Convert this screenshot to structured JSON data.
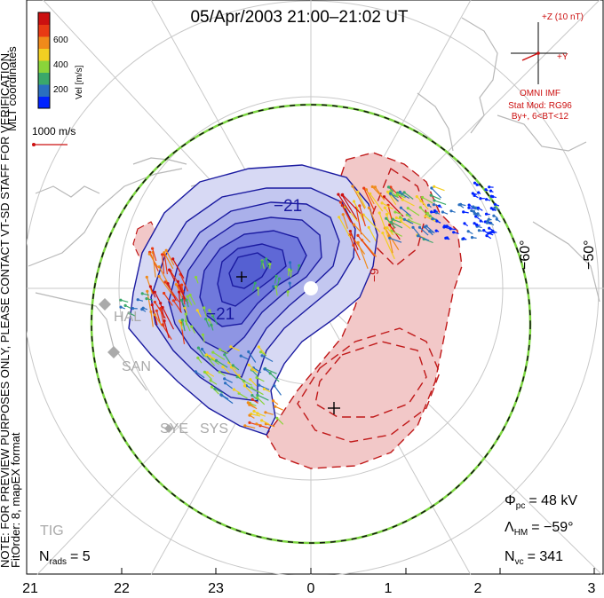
{
  "title": "05/Apr/2003 21:00–21:02 UT",
  "colorbar": {
    "ticks": [
      "600",
      "400",
      "200"
    ],
    "label": "Vel [m/s]",
    "colors": [
      "#0022ff",
      "#2a6fbf",
      "#3aa86a",
      "#8ad43a",
      "#f2cf22",
      "#f08a1a",
      "#e83a14",
      "#cc1010"
    ]
  },
  "coord_system": "MLT coordinates",
  "scale_vector": "1000 m/s",
  "preview_note": "NOTE: FOR PREVIEW PURPOSES ONLY, PLEASE CONTACT VT-SD STAFF FOR VERIFICATION.",
  "fit_order": "FitOrder: 8, mapEX format",
  "imf": {
    "z_label": "+Z (10 nT)",
    "y_label": "+Y",
    "source": "OMNI IMF",
    "stat_mod": "Stat Mod: RG96",
    "bin": "By+, 6<BT<12"
  },
  "latitude_labels": [
    "−60°",
    "−50°"
  ],
  "contour_labels": [
    "−21",
    "−21",
    "−9"
  ],
  "stations": [
    "HAL",
    "SAN",
    "SYE",
    "SYS",
    "TIG"
  ],
  "stats": {
    "phi_pc_symbol": "Φ",
    "phi_pc_sub": "pc",
    "phi_pc_value": "= 48 kV",
    "lambda_hm_symbol": "Λ",
    "lambda_hm_sub": "HM",
    "lambda_hm_value": "= −59°",
    "n_vc_symbol": "N",
    "n_vc_sub": "vc",
    "n_vc_value": "= 341",
    "n_rads_symbol": "N",
    "n_rads_sub": "rads",
    "n_rads_value": "= 5"
  },
  "mlt_ticks": [
    "21",
    "22",
    "23",
    "0",
    "1",
    "2",
    "3"
  ],
  "colors": {
    "negative_cell": "#5060e0",
    "positive_cell": "#e88080",
    "negative_contour": "#1a1aa0",
    "positive_contour": "#c01818",
    "hm_boundary": "#7cd640",
    "grid": "#c8c8c8",
    "coastline": "#b8b8b8",
    "imf_color": "#cc1010"
  }
}
